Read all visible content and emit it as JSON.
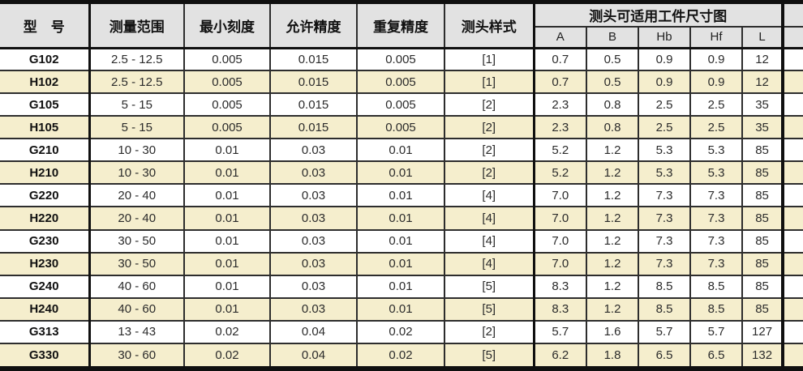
{
  "colors": {
    "header_bg": "#e2e2e2",
    "row_bg": "#ffffff",
    "row_alt_bg": "#f5eecd",
    "border": "#2d2d2d",
    "border_heavy": "#101010",
    "text": "#2b2b2b",
    "text_strong": "#111111"
  },
  "table": {
    "columns": [
      {
        "key": "model",
        "label": "型　号"
      },
      {
        "key": "range",
        "label": "测量范围"
      },
      {
        "key": "min_div",
        "label": "最小刻度"
      },
      {
        "key": "accuracy",
        "label": "允许精度"
      },
      {
        "key": "repeat",
        "label": "重复精度"
      },
      {
        "key": "probe",
        "label": "测头样式"
      }
    ],
    "group_header": {
      "label": "测头可适用工件尺寸图",
      "sub_columns": [
        "A",
        "B",
        "Hb",
        "Hf",
        "L"
      ]
    },
    "rows": [
      {
        "model": "G102",
        "range": "2.5 - 12.5",
        "min_div": "0.005",
        "accuracy": "0.015",
        "repeat": "0.005",
        "probe": "[1]",
        "A": "0.7",
        "B": "0.5",
        "Hb": "0.9",
        "Hf": "0.9",
        "L": "12"
      },
      {
        "model": "H102",
        "range": "2.5 - 12.5",
        "min_div": "0.005",
        "accuracy": "0.015",
        "repeat": "0.005",
        "probe": "[1]",
        "A": "0.7",
        "B": "0.5",
        "Hb": "0.9",
        "Hf": "0.9",
        "L": "12"
      },
      {
        "model": "G105",
        "range": "5 - 15",
        "min_div": "0.005",
        "accuracy": "0.015",
        "repeat": "0.005",
        "probe": "[2]",
        "A": "2.3",
        "B": "0.8",
        "Hb": "2.5",
        "Hf": "2.5",
        "L": "35"
      },
      {
        "model": "H105",
        "range": "5 - 15",
        "min_div": "0.005",
        "accuracy": "0.015",
        "repeat": "0.005",
        "probe": "[2]",
        "A": "2.3",
        "B": "0.8",
        "Hb": "2.5",
        "Hf": "2.5",
        "L": "35"
      },
      {
        "model": "G210",
        "range": "10 - 30",
        "min_div": "0.01",
        "accuracy": "0.03",
        "repeat": "0.01",
        "probe": "[2]",
        "A": "5.2",
        "B": "1.2",
        "Hb": "5.3",
        "Hf": "5.3",
        "L": "85"
      },
      {
        "model": "H210",
        "range": "10 - 30",
        "min_div": "0.01",
        "accuracy": "0.03",
        "repeat": "0.01",
        "probe": "[2]",
        "A": "5.2",
        "B": "1.2",
        "Hb": "5.3",
        "Hf": "5.3",
        "L": "85"
      },
      {
        "model": "G220",
        "range": "20 - 40",
        "min_div": "0.01",
        "accuracy": "0.03",
        "repeat": "0.01",
        "probe": "[4]",
        "A": "7.0",
        "B": "1.2",
        "Hb": "7.3",
        "Hf": "7.3",
        "L": "85"
      },
      {
        "model": "H220",
        "range": "20 - 40",
        "min_div": "0.01",
        "accuracy": "0.03",
        "repeat": "0.01",
        "probe": "[4]",
        "A": "7.0",
        "B": "1.2",
        "Hb": "7.3",
        "Hf": "7.3",
        "L": "85"
      },
      {
        "model": "G230",
        "range": "30 - 50",
        "min_div": "0.01",
        "accuracy": "0.03",
        "repeat": "0.01",
        "probe": "[4]",
        "A": "7.0",
        "B": "1.2",
        "Hb": "7.3",
        "Hf": "7.3",
        "L": "85"
      },
      {
        "model": "H230",
        "range": "30 - 50",
        "min_div": "0.01",
        "accuracy": "0.03",
        "repeat": "0.01",
        "probe": "[4]",
        "A": "7.0",
        "B": "1.2",
        "Hb": "7.3",
        "Hf": "7.3",
        "L": "85"
      },
      {
        "model": "G240",
        "range": "40 - 60",
        "min_div": "0.01",
        "accuracy": "0.03",
        "repeat": "0.01",
        "probe": "[5]",
        "A": "8.3",
        "B": "1.2",
        "Hb": "8.5",
        "Hf": "8.5",
        "L": "85"
      },
      {
        "model": "H240",
        "range": "40 - 60",
        "min_div": "0.01",
        "accuracy": "0.03",
        "repeat": "0.01",
        "probe": "[5]",
        "A": "8.3",
        "B": "1.2",
        "Hb": "8.5",
        "Hf": "8.5",
        "L": "85"
      },
      {
        "model": "G313",
        "range": "13 - 43",
        "min_div": "0.02",
        "accuracy": "0.04",
        "repeat": "0.02",
        "probe": "[2]",
        "A": "5.7",
        "B": "1.6",
        "Hb": "5.7",
        "Hf": "5.7",
        "L": "127"
      },
      {
        "model": "G330",
        "range": "30 - 60",
        "min_div": "0.02",
        "accuracy": "0.04",
        "repeat": "0.02",
        "probe": "[5]",
        "A": "6.2",
        "B": "1.8",
        "Hb": "6.5",
        "Hf": "6.5",
        "L": "132"
      }
    ]
  }
}
